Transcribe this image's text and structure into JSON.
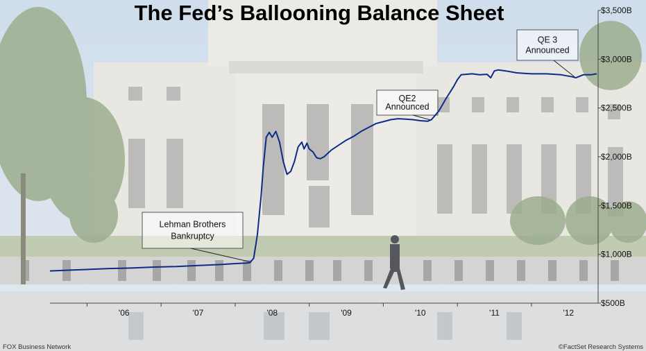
{
  "chart_data": {
    "type": "line",
    "title": "The Fed’s Ballooning Balance Sheet",
    "xlabel": "",
    "ylabel": "",
    "x_ticks": [
      "'06",
      "'07",
      "'08",
      "'09",
      "'10",
      "'11",
      "'12"
    ],
    "y_ticks": [
      "$500B",
      "$1,000B",
      "$1,500B",
      "$2,000B",
      "$2,500B",
      "$3,000B",
      "$3,500B"
    ],
    "ylim": [
      500,
      3500
    ],
    "xlim": [
      2005.5,
      2012.9
    ],
    "grid": false,
    "series": [
      {
        "name": "",
        "color": "#0d2a8a",
        "points": [
          [
            2005.5,
            830
          ],
          [
            2005.8,
            840
          ],
          [
            2006.0,
            845
          ],
          [
            2006.3,
            855
          ],
          [
            2006.6,
            860
          ],
          [
            2006.9,
            870
          ],
          [
            2007.2,
            875
          ],
          [
            2007.5,
            885
          ],
          [
            2007.8,
            895
          ],
          [
            2008.0,
            905
          ],
          [
            2008.15,
            910
          ],
          [
            2008.2,
            915
          ],
          [
            2008.25,
            960
          ],
          [
            2008.3,
            1200
          ],
          [
            2008.35,
            1600
          ],
          [
            2008.38,
            1900
          ],
          [
            2008.42,
            2200
          ],
          [
            2008.46,
            2250
          ],
          [
            2008.5,
            2200
          ],
          [
            2008.55,
            2260
          ],
          [
            2008.6,
            2150
          ],
          [
            2008.65,
            1950
          ],
          [
            2008.7,
            1820
          ],
          [
            2008.75,
            1850
          ],
          [
            2008.8,
            1950
          ],
          [
            2008.85,
            2100
          ],
          [
            2008.9,
            2150
          ],
          [
            2008.93,
            2080
          ],
          [
            2008.97,
            2140
          ],
          [
            2009.0,
            2080
          ],
          [
            2009.05,
            2050
          ],
          [
            2009.1,
            1990
          ],
          [
            2009.15,
            1980
          ],
          [
            2009.2,
            2000
          ],
          [
            2009.3,
            2070
          ],
          [
            2009.4,
            2120
          ],
          [
            2009.5,
            2170
          ],
          [
            2009.6,
            2210
          ],
          [
            2009.7,
            2260
          ],
          [
            2009.8,
            2300
          ],
          [
            2009.9,
            2340
          ],
          [
            2010.0,
            2360
          ],
          [
            2010.1,
            2380
          ],
          [
            2010.2,
            2390
          ],
          [
            2010.3,
            2385
          ],
          [
            2010.4,
            2380
          ],
          [
            2010.5,
            2370
          ],
          [
            2010.6,
            2365
          ],
          [
            2010.65,
            2380
          ],
          [
            2010.75,
            2470
          ],
          [
            2010.85,
            2600
          ],
          [
            2010.95,
            2720
          ],
          [
            2011.0,
            2790
          ],
          [
            2011.05,
            2840
          ],
          [
            2011.2,
            2850
          ],
          [
            2011.3,
            2840
          ],
          [
            2011.4,
            2845
          ],
          [
            2011.45,
            2810
          ],
          [
            2011.5,
            2880
          ],
          [
            2011.55,
            2890
          ],
          [
            2011.65,
            2880
          ],
          [
            2011.8,
            2860
          ],
          [
            2012.0,
            2850
          ],
          [
            2012.2,
            2850
          ],
          [
            2012.4,
            2840
          ],
          [
            2012.55,
            2820
          ],
          [
            2012.6,
            2810
          ],
          [
            2012.7,
            2840
          ],
          [
            2012.8,
            2840
          ],
          [
            2012.88,
            2850
          ]
        ]
      }
    ],
    "annotations": [
      {
        "lines": [
          "Lehman Brothers",
          "Bankruptcy"
        ],
        "target": [
          2008.22,
          920
        ]
      },
      {
        "lines": [
          "QE2",
          "Announced"
        ],
        "target": [
          2010.65,
          2375
        ]
      },
      {
        "lines": [
          "QE 3",
          "Announced"
        ],
        "target": [
          2012.58,
          2820
        ]
      }
    ],
    "credits": {
      "left": "FOX Business Network",
      "right": "©FactSet Research Systems"
    }
  }
}
